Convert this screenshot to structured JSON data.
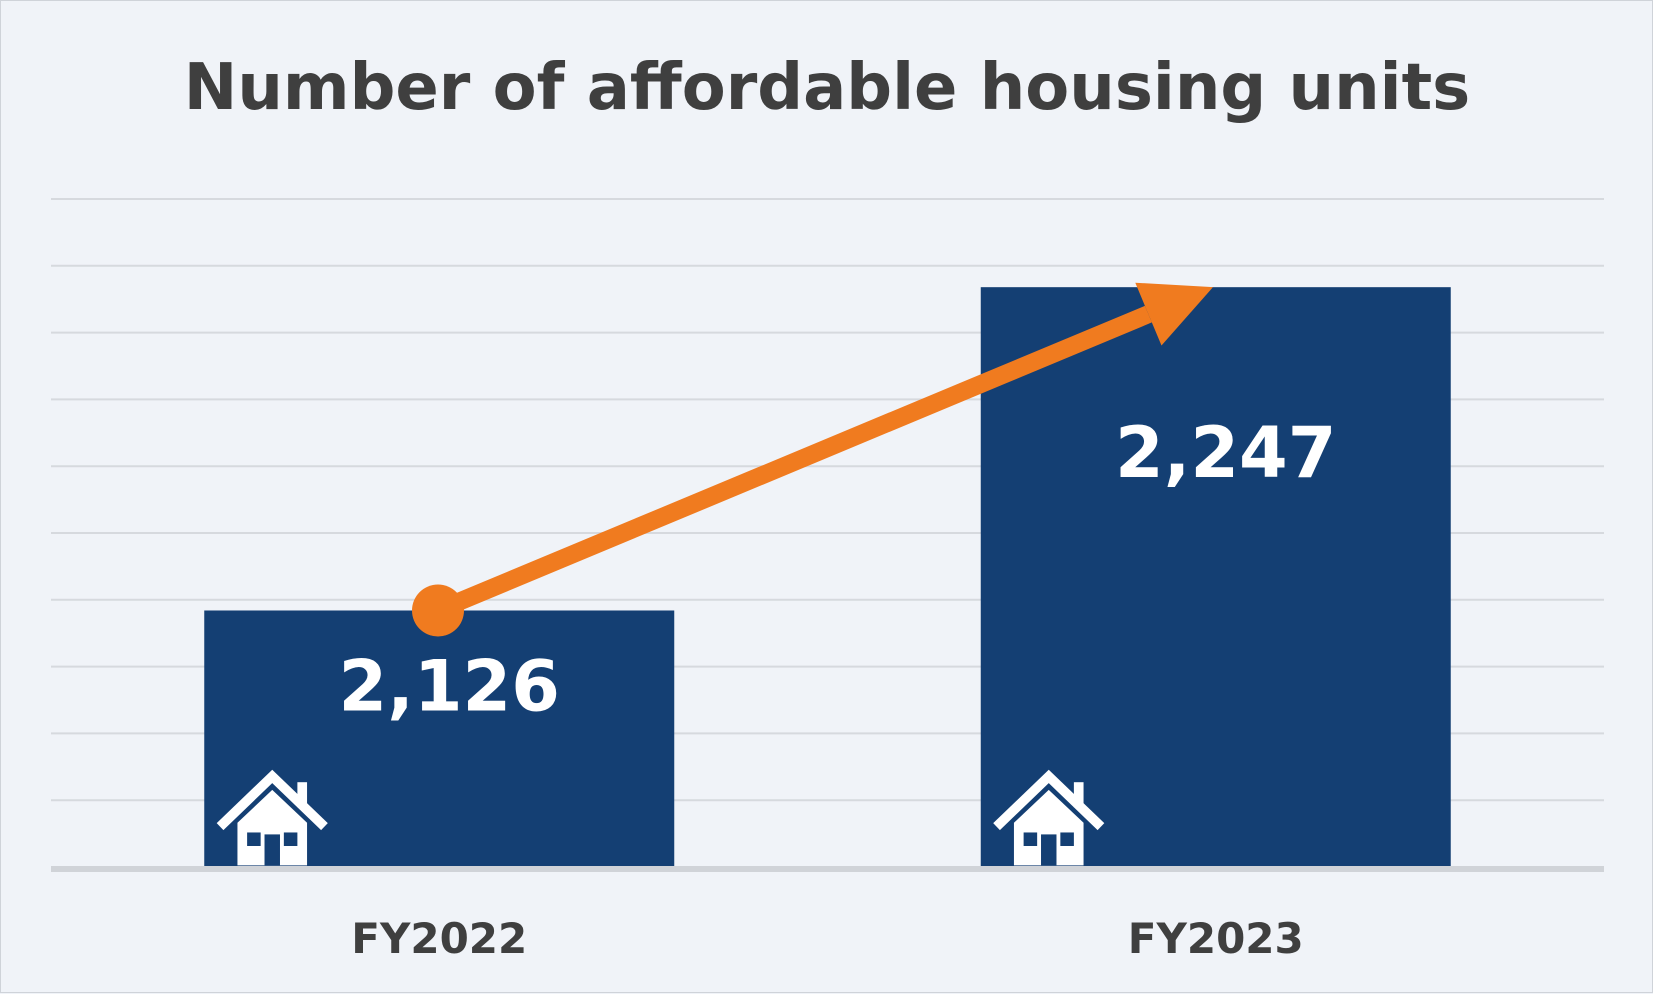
{
  "chart_data": {
    "type": "bar",
    "title": "Number of affordable housing units",
    "xlabel": "",
    "ylabel": "",
    "categories": [
      "FY2022",
      "FY2023"
    ],
    "values": [
      2126,
      2247
    ],
    "value_labels": [
      "2,126",
      "2,247"
    ],
    "ylim": [
      2030,
      2280
    ],
    "grid": true,
    "legend": "none",
    "colors": {
      "bar": "#143f73",
      "arrow": "#f07b1f",
      "grid": "#d6d9de",
      "axis": "#d0d3d8",
      "background": "#f0f3f8",
      "text": "#3f3f3f"
    },
    "bar_icon": "house-icon",
    "annotation": "trend-arrow"
  }
}
